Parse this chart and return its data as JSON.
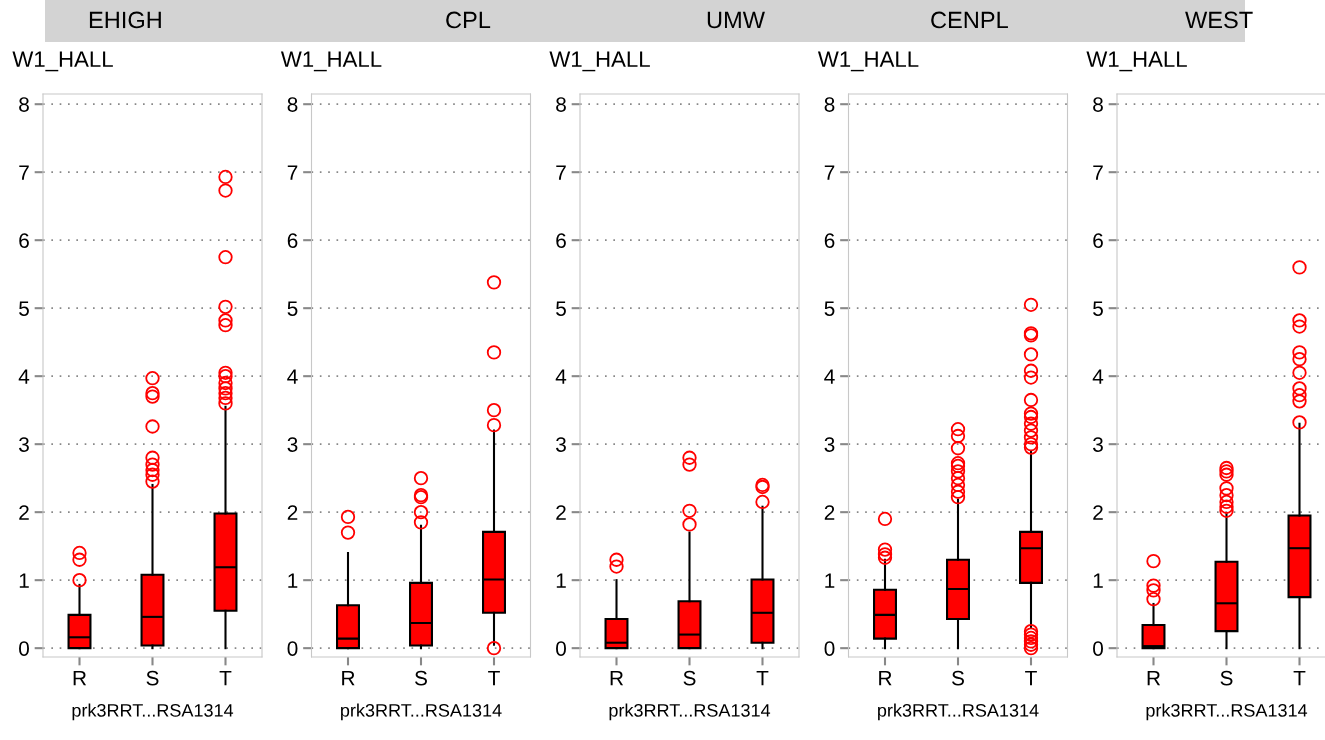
{
  "chart_data": [
    {
      "type": "box",
      "title": "EHIGH",
      "ylabel": "W1_HALL",
      "xlabel": "prk3RRT...RSA1314",
      "categories": [
        "R",
        "S",
        "T"
      ],
      "color": "#ff0000",
      "grid": "y",
      "ylim": [
        -0.13,
        8.15
      ],
      "yticks": [
        0,
        1,
        2,
        3,
        4,
        5,
        6,
        7,
        8
      ],
      "boxes": [
        {
          "low": 0,
          "q1": 0,
          "median": 0.16,
          "q3": 0.49,
          "high": 0.93,
          "outliers": [
            1.0,
            1.3,
            1.4
          ]
        },
        {
          "low": 0,
          "q1": 0.04,
          "median": 0.46,
          "q3": 1.08,
          "high": 2.4,
          "outliers": [
            2.45,
            2.55,
            2.62,
            2.7,
            2.8,
            3.26,
            3.7,
            3.75,
            3.97
          ]
        },
        {
          "low": 0,
          "q1": 0.55,
          "median": 1.19,
          "q3": 1.98,
          "high": 3.55,
          "outliers": [
            3.6,
            3.68,
            3.75,
            3.82,
            3.9,
            4.0,
            4.05,
            4.75,
            4.82,
            5.02,
            5.75,
            6.73,
            6.93
          ]
        }
      ]
    },
    {
      "type": "box",
      "title": "CPL",
      "ylabel": "W1_HALL",
      "xlabel": "prk3RRT...RSA1314",
      "categories": [
        "R",
        "S",
        "T"
      ],
      "color": "#ff0000",
      "grid": "y",
      "ylim": [
        -0.13,
        8.15
      ],
      "yticks": [
        0,
        1,
        2,
        3,
        4,
        5,
        6,
        7,
        8
      ],
      "boxes": [
        {
          "low": 0,
          "q1": 0,
          "median": 0.14,
          "q3": 0.63,
          "high": 1.4,
          "outliers": [
            1.7,
            1.93
          ]
        },
        {
          "low": 0,
          "q1": 0.04,
          "median": 0.37,
          "q3": 0.96,
          "high": 1.8,
          "outliers": [
            1.85,
            2.0,
            2.22,
            2.25,
            2.5
          ]
        },
        {
          "low": 0.05,
          "q1": 0.52,
          "median": 1.01,
          "q3": 1.71,
          "high": 3.2,
          "outliers": [
            0,
            3.28,
            3.5,
            4.35,
            5.38
          ]
        }
      ]
    },
    {
      "type": "box",
      "title": "UMW",
      "ylabel": "W1_HALL",
      "xlabel": "prk3RRT...RSA1314",
      "categories": [
        "R",
        "S",
        "T"
      ],
      "color": "#ff0000",
      "grid": "y",
      "ylim": [
        -0.13,
        8.15
      ],
      "yticks": [
        0,
        1,
        2,
        3,
        4,
        5,
        6,
        7,
        8
      ],
      "boxes": [
        {
          "low": 0,
          "q1": 0,
          "median": 0.08,
          "q3": 0.43,
          "high": 1.0,
          "outliers": [
            1.2,
            1.3
          ]
        },
        {
          "low": 0,
          "q1": 0,
          "median": 0.2,
          "q3": 0.69,
          "high": 1.7,
          "outliers": [
            1.82,
            2.02,
            2.7,
            2.8
          ]
        },
        {
          "low": 0,
          "q1": 0.08,
          "median": 0.52,
          "q3": 1.01,
          "high": 2.08,
          "outliers": [
            2.15,
            2.37,
            2.4
          ]
        }
      ]
    },
    {
      "type": "box",
      "title": "CENPL",
      "ylabel": "W1_HALL",
      "xlabel": "prk3RRT...RSA1314",
      "categories": [
        "R",
        "S",
        "T"
      ],
      "color": "#ff0000",
      "grid": "y",
      "ylim": [
        -0.13,
        8.15
      ],
      "yticks": [
        0,
        1,
        2,
        3,
        4,
        5,
        6,
        7,
        8
      ],
      "boxes": [
        {
          "low": 0,
          "q1": 0.14,
          "median": 0.49,
          "q3": 0.86,
          "high": 1.3,
          "outliers": [
            1.33,
            1.38,
            1.45,
            1.9
          ]
        },
        {
          "low": 0,
          "q1": 0.43,
          "median": 0.87,
          "q3": 1.3,
          "high": 2.18,
          "outliers": [
            2.22,
            2.3,
            2.4,
            2.5,
            2.6,
            2.68,
            2.72,
            2.94,
            3.12,
            3.22
          ]
        },
        {
          "low": 0.3,
          "q1": 0.96,
          "median": 1.47,
          "q3": 1.71,
          "high": 2.9,
          "outliers": [
            0,
            0.05,
            0.1,
            0.15,
            0.2,
            0.25,
            2.95,
            3.0,
            3.1,
            3.2,
            3.3,
            3.4,
            3.45,
            3.65,
            3.98,
            4.08,
            4.32,
            4.6,
            4.63,
            5.05
          ]
        }
      ]
    },
    {
      "type": "box",
      "title": "WEST",
      "ylabel": "W1_HALL",
      "xlabel": "prk3RRT...RSA1314",
      "categories": [
        "R",
        "S",
        "T"
      ],
      "color": "#ff0000",
      "grid": "y",
      "ylim": [
        -0.13,
        8.15
      ],
      "yticks": [
        0,
        1,
        2,
        3,
        4,
        5,
        6,
        7,
        8
      ],
      "boxes": [
        {
          "low": 0,
          "q1": 0,
          "median": 0.03,
          "q3": 0.34,
          "high": 0.65,
          "outliers": [
            0.72,
            0.85,
            0.92,
            1.28
          ]
        },
        {
          "low": 0,
          "q1": 0.25,
          "median": 0.66,
          "q3": 1.27,
          "high": 1.98,
          "outliers": [
            2.02,
            2.08,
            2.15,
            2.25,
            2.35,
            2.55,
            2.6,
            2.65
          ]
        },
        {
          "low": 0,
          "q1": 0.75,
          "median": 1.47,
          "q3": 1.95,
          "high": 3.3,
          "outliers": [
            3.32,
            3.63,
            3.72,
            3.82,
            4.05,
            4.25,
            4.35,
            4.73,
            4.82,
            5.6
          ]
        }
      ]
    }
  ]
}
